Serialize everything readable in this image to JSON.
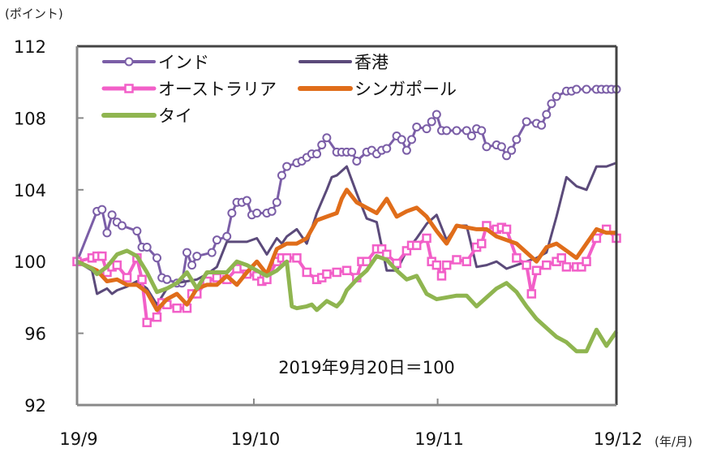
{
  "chart_data": {
    "type": "line",
    "title": "",
    "ylabel": "(ポイント)",
    "xlabel": "(年/月)",
    "annotation": "2019年9月20日＝100",
    "ylim": [
      92,
      112
    ],
    "yticks": [
      92,
      96,
      100,
      104,
      108,
      112
    ],
    "ytick_labels": [
      "92",
      "96",
      "100",
      "104",
      "108",
      "112"
    ],
    "xlim": [
      0,
      54
    ],
    "xticks": [
      0,
      17.7,
      36.1,
      54
    ],
    "xtick_labels": [
      "19/9",
      "19/10",
      "19/11",
      "19/12"
    ],
    "grid": false,
    "legend_position": "top-left",
    "series": [
      {
        "name": "インド",
        "color": "#7b5ea7",
        "marker": "circle",
        "width": 3,
        "x": [
          0,
          2,
          2.5,
          3,
          3.5,
          4,
          4.5,
          6,
          6.5,
          7,
          8,
          8.5,
          9,
          10,
          10.5,
          11,
          11.5,
          12,
          13.5,
          14,
          15,
          15.5,
          16,
          16.5,
          17,
          17.5,
          18,
          19,
          19.5,
          20,
          20.5,
          21,
          22,
          22.5,
          23,
          23.5,
          24,
          24.5,
          25,
          26,
          26.5,
          27,
          27.5,
          28,
          29,
          29.5,
          30,
          30.5,
          31,
          32,
          32.5,
          33,
          33.5,
          34,
          35,
          35.5,
          36,
          36.5,
          37,
          38,
          39,
          39.5,
          40,
          40.5,
          41,
          42,
          42.5,
          43,
          43.5,
          44,
          45,
          46,
          46.5,
          47,
          47.5,
          48,
          49,
          49.5,
          50,
          51,
          52,
          52.5,
          53,
          53.5,
          54
        ],
        "y": [
          100,
          102.8,
          102.9,
          101.6,
          102.6,
          102.2,
          102.0,
          101.7,
          100.8,
          100.8,
          100.2,
          99.1,
          99.0,
          98.8,
          98.8,
          100.5,
          99.8,
          100.3,
          100.5,
          101.2,
          101.4,
          102.7,
          103.3,
          103.3,
          103.4,
          102.6,
          102.7,
          102.7,
          102.8,
          103.3,
          104.8,
          105.3,
          105.5,
          105.6,
          105.8,
          106.0,
          106.0,
          106.5,
          106.9,
          106.1,
          106.1,
          106.1,
          106.1,
          105.6,
          106.1,
          106.2,
          106.0,
          106.2,
          106.3,
          107.0,
          106.8,
          106.2,
          106.8,
          107.5,
          107.4,
          107.8,
          108.2,
          107.3,
          107.3,
          107.3,
          107.3,
          107.0,
          107.4,
          107.3,
          106.4,
          106.5,
          106.4,
          105.9,
          106.2,
          106.8,
          107.8,
          107.7,
          107.6,
          108.2,
          108.8,
          109.2,
          109.5,
          109.5,
          109.6,
          109.6,
          109.6,
          109.6,
          109.6,
          109.6,
          109.6
        ]
      },
      {
        "name": "香港",
        "color": "#5b4a7a",
        "marker": "none",
        "width": 3,
        "x": [
          0,
          1.5,
          2,
          3,
          3.5,
          4,
          5,
          6,
          7,
          8,
          9,
          10,
          11,
          12,
          13,
          14,
          15,
          16,
          17,
          18,
          19,
          20,
          20.5,
          21,
          22,
          23,
          24,
          25,
          25.5,
          26,
          27,
          28,
          29,
          30,
          31,
          32,
          33,
          34,
          35,
          36,
          37,
          38,
          39,
          40,
          41,
          42,
          43,
          44,
          45,
          46,
          47,
          48,
          49,
          50,
          51,
          52,
          53,
          54
        ],
        "y": [
          100,
          99.5,
          98.2,
          98.5,
          98.2,
          98.4,
          98.6,
          98.9,
          98.5,
          97.6,
          98.5,
          98.8,
          98.9,
          99.0,
          99.3,
          99.7,
          101.1,
          101.1,
          101.1,
          101.3,
          100.4,
          101.3,
          101.0,
          101.4,
          101.8,
          101.0,
          102.7,
          104.0,
          104.7,
          104.8,
          105.3,
          103.8,
          102.4,
          102.2,
          99.5,
          99.5,
          100.6,
          101.3,
          102.1,
          102.6,
          101.2,
          102.0,
          102.0,
          99.7,
          99.8,
          100.0,
          99.6,
          99.8,
          100.0,
          100.2,
          100.5,
          102.5,
          104.7,
          104.2,
          104.0,
          105.3,
          105.3,
          105.5
        ]
      },
      {
        "name": "オーストラリア",
        "color": "#f25fc8",
        "marker": "square",
        "width": 4,
        "x": [
          0,
          1.5,
          2,
          2.5,
          3,
          3.5,
          4,
          5,
          6,
          6.5,
          7,
          8,
          8.5,
          9,
          10,
          11,
          11.5,
          12,
          13,
          14,
          15,
          16,
          17,
          18,
          18.5,
          19,
          20,
          20.5,
          21,
          22,
          23,
          24,
          24.5,
          25,
          26,
          27,
          28,
          28.5,
          29,
          30,
          30.5,
          31,
          32,
          33,
          33.5,
          34,
          35,
          35.5,
          36,
          36.5,
          37,
          38,
          39,
          40,
          40.5,
          41,
          42,
          42.5,
          43,
          44,
          45,
          45.5,
          46,
          47,
          48,
          48.5,
          49,
          50,
          50.5,
          51,
          52,
          53,
          54
        ],
        "y": [
          100,
          100.2,
          100.3,
          100.3,
          99.4,
          99.7,
          99.8,
          99.1,
          100.2,
          99.0,
          96.6,
          96.9,
          97.7,
          97.6,
          97.4,
          97.4,
          98.2,
          98.2,
          98.9,
          99.1,
          99.0,
          99.6,
          99.3,
          99.2,
          98.9,
          99.0,
          100.0,
          100.2,
          100.2,
          100.2,
          99.4,
          99.0,
          99.1,
          99.3,
          99.4,
          99.5,
          99.1,
          100.0,
          100.0,
          100.7,
          100.7,
          100.4,
          99.9,
          100.6,
          100.9,
          100.9,
          101.3,
          100.0,
          99.8,
          99.2,
          99.8,
          100.1,
          100.0,
          100.8,
          101.0,
          102.0,
          101.8,
          101.9,
          101.8,
          100.2,
          99.8,
          98.2,
          99.5,
          99.8,
          100.0,
          100.2,
          99.7,
          99.7,
          99.7,
          100.0,
          101.3,
          101.8,
          101.3
        ]
      },
      {
        "name": "シンガポール",
        "color": "#e06d1a",
        "marker": "none",
        "width": 5,
        "x": [
          0,
          2,
          3,
          4,
          5,
          6,
          7,
          8,
          9,
          10,
          11,
          12,
          13,
          14,
          15,
          16,
          17,
          18,
          19,
          20,
          21,
          22,
          23,
          24,
          25,
          26,
          26.5,
          27,
          28,
          29,
          30,
          31,
          32,
          33,
          34,
          35,
          36,
          37,
          38,
          39,
          40,
          41,
          42,
          43,
          44,
          45,
          46,
          47,
          48,
          49,
          50,
          51,
          52,
          53,
          54
        ],
        "y": [
          100,
          99.5,
          98.9,
          99.0,
          98.7,
          98.7,
          98.3,
          97.3,
          97.9,
          98.2,
          97.6,
          98.5,
          98.7,
          98.7,
          99.2,
          98.7,
          99.4,
          100.0,
          99.3,
          100.7,
          101.0,
          101.0,
          101.3,
          102.3,
          102.5,
          102.7,
          103.5,
          104.0,
          103.3,
          103.0,
          102.7,
          103.5,
          102.5,
          102.8,
          103.0,
          102.5,
          101.7,
          101.0,
          102.0,
          101.9,
          101.8,
          101.8,
          101.4,
          101.2,
          101.0,
          100.5,
          100.0,
          100.8,
          101.0,
          100.6,
          100.2,
          101.0,
          101.8,
          101.6,
          101.6
        ]
      },
      {
        "name": "タイ",
        "color": "#8fb550",
        "marker": "none",
        "width": 5,
        "x": [
          0,
          1.5,
          2,
          3,
          4,
          5,
          6,
          7,
          8,
          9,
          10,
          11,
          12,
          13,
          14,
          15,
          16,
          17,
          18,
          19,
          20,
          21,
          21.5,
          22,
          23,
          23.5,
          24,
          25,
          26,
          26.5,
          27,
          28,
          29,
          30,
          31,
          32,
          33,
          34,
          35,
          36,
          37,
          38,
          39,
          40,
          41,
          42,
          43,
          44,
          45,
          46,
          47,
          48,
          49,
          50,
          51,
          52,
          53,
          54
        ],
        "y": [
          100,
          99.6,
          99.3,
          99.7,
          100.4,
          100.6,
          100.3,
          99.4,
          98.3,
          98.5,
          98.8,
          99.4,
          98.5,
          99.4,
          99.4,
          99.4,
          100.0,
          99.8,
          99.5,
          99.2,
          99.5,
          100.0,
          97.5,
          97.4,
          97.5,
          97.6,
          97.3,
          97.8,
          97.5,
          97.8,
          98.4,
          99.0,
          99.5,
          100.3,
          100.1,
          99.5,
          99.0,
          99.2,
          98.2,
          97.9,
          98.0,
          98.1,
          98.1,
          97.5,
          98.0,
          98.5,
          98.8,
          98.3,
          97.5,
          96.8,
          96.3,
          95.8,
          95.5,
          95.0,
          95.0,
          96.2,
          95.3,
          96.1
        ]
      }
    ]
  }
}
